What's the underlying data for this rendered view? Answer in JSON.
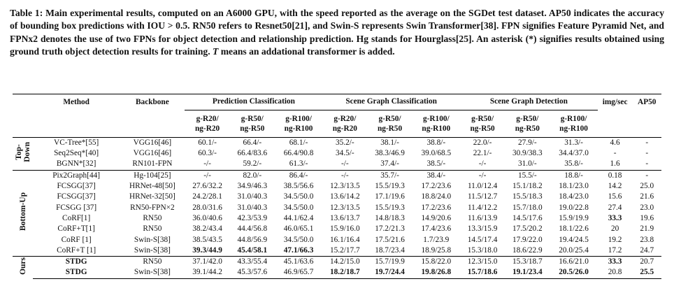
{
  "caption": {
    "part1": "Table 1: Main experimental results, computed on an A6000 GPU, with the speed reported as the average on the SGDet test dataset. AP50 indicates the accuracy of bounding box predictions with IOU > 0.5. RN50 refers to Resnet50[21], and Swin-S represents Swin Transformer[38]. FPN signifies Feature Pyramid Net, and FPNx2 denotes the use of two FPNs for object detection and relationship prediction. Hg stands for Hourglass[25]. An asterisk (*) signifies results obtained using ground truth object detection results for training. ",
    "italic_T": "T",
    "part2": " means an addational transformer is added."
  },
  "table": {
    "headers": {
      "method": "Method",
      "backbone": "Backbone",
      "groups": [
        "Prediction Classification",
        "Scene Graph Classification",
        "Scene Graph Detection"
      ],
      "img_sec": "img/sec",
      "ap50": "AP50",
      "subheaders": [
        [
          "g-R20/",
          "ng-R20"
        ],
        [
          "g-R50/",
          "ng-R50"
        ],
        [
          "g-R100/",
          "ng-R100"
        ],
        [
          "g-R20/",
          "ng-R20"
        ],
        [
          "g-R50/",
          "ng-R50"
        ],
        [
          "g-R100/",
          "ng-R100"
        ],
        [
          "g-R50/",
          "ng-R50"
        ],
        [
          "g-R50/",
          "ng-R50"
        ],
        [
          "g-R100/",
          "ng-R100"
        ]
      ]
    },
    "sections": [
      {
        "label": "Top-\nDown",
        "rows": [
          {
            "cells": [
              "VC-Tree*[55]",
              "VGG16[46]",
              "60.1/-",
              "66.4/-",
              "68.1/-",
              "35.2/-",
              "38.1/-",
              "38.8/-",
              "22.0/-",
              "27.9/-",
              "31.3/-",
              "4.6",
              "-"
            ],
            "bold": []
          },
          {
            "cells": [
              "Seq2Seq*[40]",
              "VGG16[46]",
              "60.3/-",
              "66.4/83.6",
              "66.4/90.8",
              "34.5/-",
              "38.3/46.9",
              "39.0/68.5",
              "22.1/-",
              "30.9/38.3",
              "34.4/37.0",
              "-",
              "-"
            ],
            "bold": []
          },
          {
            "cells": [
              "BGNN*[32]",
              "RN101-FPN",
              "-/-",
              "59.2/-",
              "61.3/-",
              "-/-",
              "37.4/-",
              "38.5/-",
              "-/-",
              "31.0/-",
              "35.8/-",
              "1.6",
              "-"
            ],
            "bold": []
          }
        ]
      },
      {
        "label": "Bottom-Up",
        "rows": [
          {
            "cells": [
              "Pix2Graph[44]",
              "Hg-104[25]",
              "-/-",
              "82.0/-",
              "86.4/-",
              "-/-",
              "35.7/-",
              "38.4/-",
              "-/-",
              "15.5/-",
              "18.8/-",
              "0.18",
              "-"
            ],
            "bold": []
          },
          {
            "cells": [
              "FCSGG[37]",
              "HRNet-48[50]",
              "27.6/32.2",
              "34.9/46.3",
              "38.5/56.6",
              "12.3/13.5",
              "15.5/19.3",
              "17.2/23.6",
              "11.0/12.4",
              "15.1/18.2",
              "18.1/23.0",
              "14.2",
              "25.0"
            ],
            "bold": []
          },
          {
            "cells": [
              "FCSGG[37]",
              "HRNet-32[50]",
              "24.2/28.1",
              "31.0/40.3",
              "34.5/50.0",
              "13.6/14.2",
              "17.1/19.6",
              "18.8/24.0",
              "11.5/12.7",
              "15.5/18.3",
              "18.4/23.0",
              "15.6",
              "21.6"
            ],
            "bold": []
          },
          {
            "cells": [
              "FCSGG [37]",
              "RN50-FPN×2",
              "28.0/31.6",
              "31.0/40.3",
              "34.5/50.0",
              "12.3/13.5",
              "15.5/19.3",
              "17.2/23.6",
              "11.4/12.2",
              "15.7/18.0",
              "19.0/22.8",
              "27.4",
              "23.0"
            ],
            "bold": []
          },
          {
            "cells": [
              "CoRF[1]",
              "RN50",
              "36.0/40.6",
              "42.3/53.9",
              "44.1/62.4",
              "13.6/13.7",
              "14.8/18.3",
              "14.9/20.6",
              "11.6/13.9",
              "14.5/17.6",
              "15.9/19.9",
              "33.3",
              "19.6"
            ],
            "bold": [
              11
            ]
          },
          {
            "cells": [
              "CoRF+T[1]",
              "RN50",
              "38.2/43.4",
              "44.4/56.8",
              "46.0/65.1",
              "15.9/16.0",
              "17.2/21.3",
              "17.4/23.6",
              "13.3/15.9",
              "17.5/20.2",
              "18.1/22.6",
              "20",
              "21.9"
            ],
            "bold": []
          },
          {
            "cells": [
              "CoRF [1]",
              "Swin-S[38]",
              "38.5/43.5",
              "44.8/56.9",
              "34.5/50.0",
              "16.1/16.4",
              "17.5/21.6",
              "1.7/23.9",
              "14.5/17.4",
              "17.9/22.0",
              "19.4/24.5",
              "19.2",
              "23.8"
            ],
            "bold": []
          },
          {
            "cells": [
              "CoRF+T [1]",
              "Swin-S[38]",
              "39.3/44.9",
              "45.4/58.1",
              "47.1/66.3",
              "15.2/17.7",
              "18.7/23.4",
              "18.9/25.8",
              "15.3/18.0",
              "18.6/22.9",
              "20.0/25.4",
              "17.2",
              "24.7"
            ],
            "bold": [
              2,
              3,
              4
            ]
          }
        ]
      },
      {
        "label": "Ours",
        "rows": [
          {
            "cells": [
              "STDG",
              "RN50",
              "37.1/42.0",
              "43.3/55.4",
              "45.1/63.6",
              "14.2/15.0",
              "15.7/19.9",
              "15.8/22.0",
              "12.3/15.0",
              "15.3/18.7",
              "16.6/21.0",
              "33.3",
              "20.7"
            ],
            "bold": [
              0,
              11
            ]
          },
          {
            "cells": [
              "STDG",
              "Swin-S[38]",
              "39.1/44.2",
              "45.3/57.6",
              "46.9/65.7",
              "18.2/18.7",
              "19.7/24.4",
              "19.8/26.8",
              "15.7/18.6",
              "19.1/23.4",
              "20.5/26.0",
              "20.8",
              "25.5"
            ],
            "bold": [
              0,
              5,
              6,
              7,
              8,
              9,
              10,
              12
            ]
          }
        ]
      }
    ]
  }
}
